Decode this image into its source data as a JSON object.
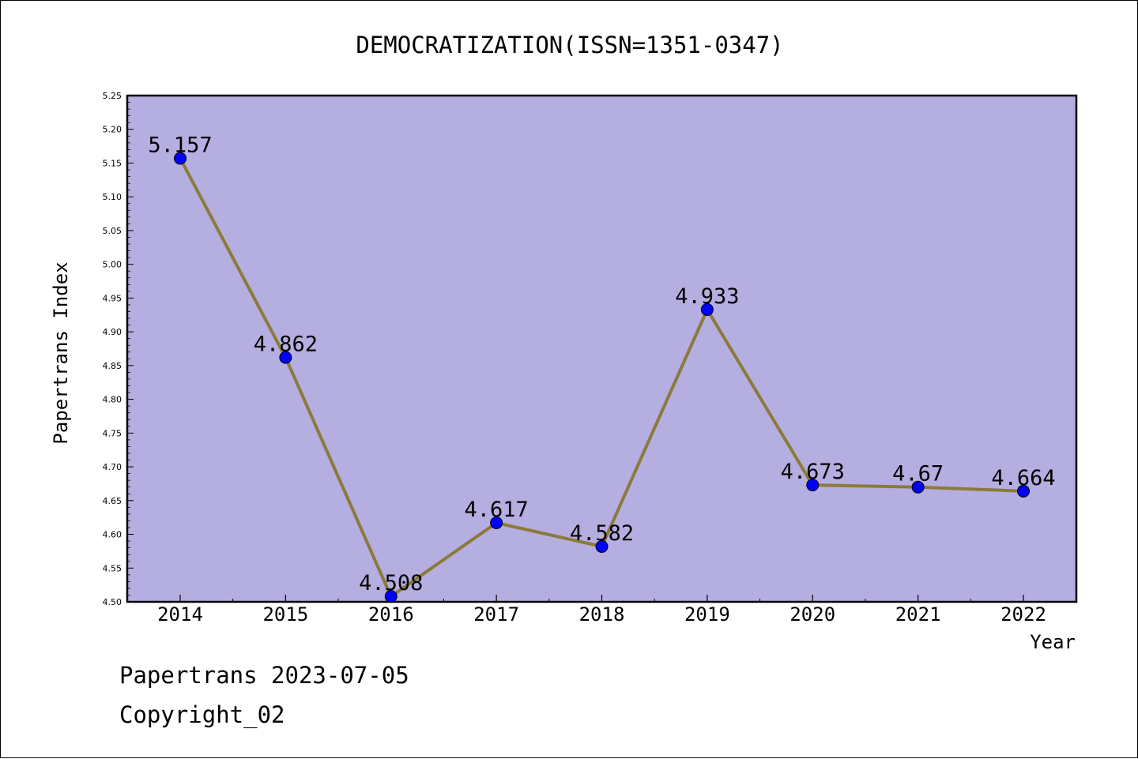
{
  "chart_data": {
    "type": "line",
    "title": "DEMOCRATIZATION(ISSN=1351-0347)",
    "xlabel": "Year",
    "ylabel": "Papertrans Index",
    "x": [
      "2014",
      "2015",
      "2016",
      "2017",
      "2018",
      "2019",
      "2020",
      "2021",
      "2022"
    ],
    "series": [
      {
        "values": [
          5.157,
          4.862,
          4.508,
          4.617,
          4.582,
          4.933,
          4.673,
          4.67,
          4.664
        ],
        "labels": [
          "5.157",
          "4.862",
          "4.508",
          "4.617",
          "4.582",
          "4.933",
          "4.673",
          "4.67",
          "4.664"
        ]
      }
    ],
    "ylim": [
      4.5,
      5.25
    ],
    "yticks": [
      "4.50",
      "4.55",
      "4.60",
      "4.65",
      "4.70",
      "4.75",
      "4.80",
      "4.85",
      "4.90",
      "4.95",
      "5.00",
      "5.05",
      "5.10",
      "5.15",
      "5.20",
      "5.25"
    ],
    "grid": false,
    "colors": {
      "plot_background": "#b5aee1",
      "line": "#8b7a3a",
      "marker": "#0000ff"
    }
  },
  "footer": {
    "date_line": "Papertrans 2023-07-05",
    "copyright_line": "Copyright_02"
  }
}
